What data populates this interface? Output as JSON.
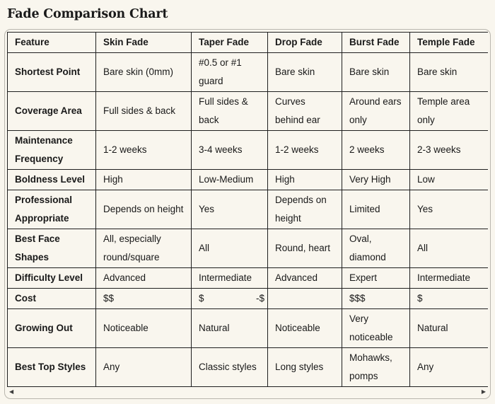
{
  "page": {
    "title": "Fade Comparison Chart"
  },
  "colors": {
    "background": "#f9f6ee",
    "text": "#191919",
    "table_border": "#1f1f1f",
    "container_border": "#b9b6ae"
  },
  "table": {
    "columns": [
      "Feature",
      "Skin Fade",
      "Taper Fade",
      "Drop Fade",
      "Burst Fade",
      "Temple Fade"
    ],
    "rows": [
      {
        "feature": "Shortest Point",
        "values": [
          "Bare skin (0mm)",
          "#0.5 or #1 guard",
          "Bare skin",
          "Bare skin",
          "Bare skin"
        ]
      },
      {
        "feature": "Coverage Area",
        "values": [
          "Full sides & back",
          "Full sides & back",
          "Curves behind ear",
          "Around ears only",
          "Temple area only"
        ]
      },
      {
        "feature": "Maintenance Frequency",
        "values": [
          "1-2 weeks",
          "3-4 weeks",
          "1-2 weeks",
          "2 weeks",
          "2-3 weeks"
        ]
      },
      {
        "feature": "Boldness Level",
        "values": [
          "High",
          "Low-Medium",
          "High",
          "Very High",
          "Low"
        ]
      },
      {
        "feature": "Professional Appropriate",
        "values": [
          "Depends on height",
          "Yes",
          "Depends on height",
          "Limited",
          "Yes"
        ]
      },
      {
        "feature": "Best Face Shapes",
        "values": [
          "All, especially round/square",
          "All",
          "Round, heart",
          "Oval, diamond",
          "All"
        ]
      },
      {
        "feature": "Difficulty Level",
        "values": [
          "Advanced",
          "Intermediate",
          "Advanced",
          "Expert",
          "Intermediate"
        ]
      },
      {
        "feature": "Cost",
        "values": [
          "$$",
          "$",
          "-$",
          "$$$",
          "$"
        ]
      },
      {
        "feature": "Growing Out",
        "values": [
          "Noticeable",
          "Natural",
          "Noticeable",
          "Very noticeable",
          "Natural"
        ]
      },
      {
        "feature": "Best Top Styles",
        "values": [
          "Any",
          "Classic styles",
          "Long styles",
          "Mohawks, pomps",
          "Any"
        ]
      }
    ]
  },
  "scrollbar": {
    "left_arrow": "◀",
    "right_arrow": "▶"
  }
}
